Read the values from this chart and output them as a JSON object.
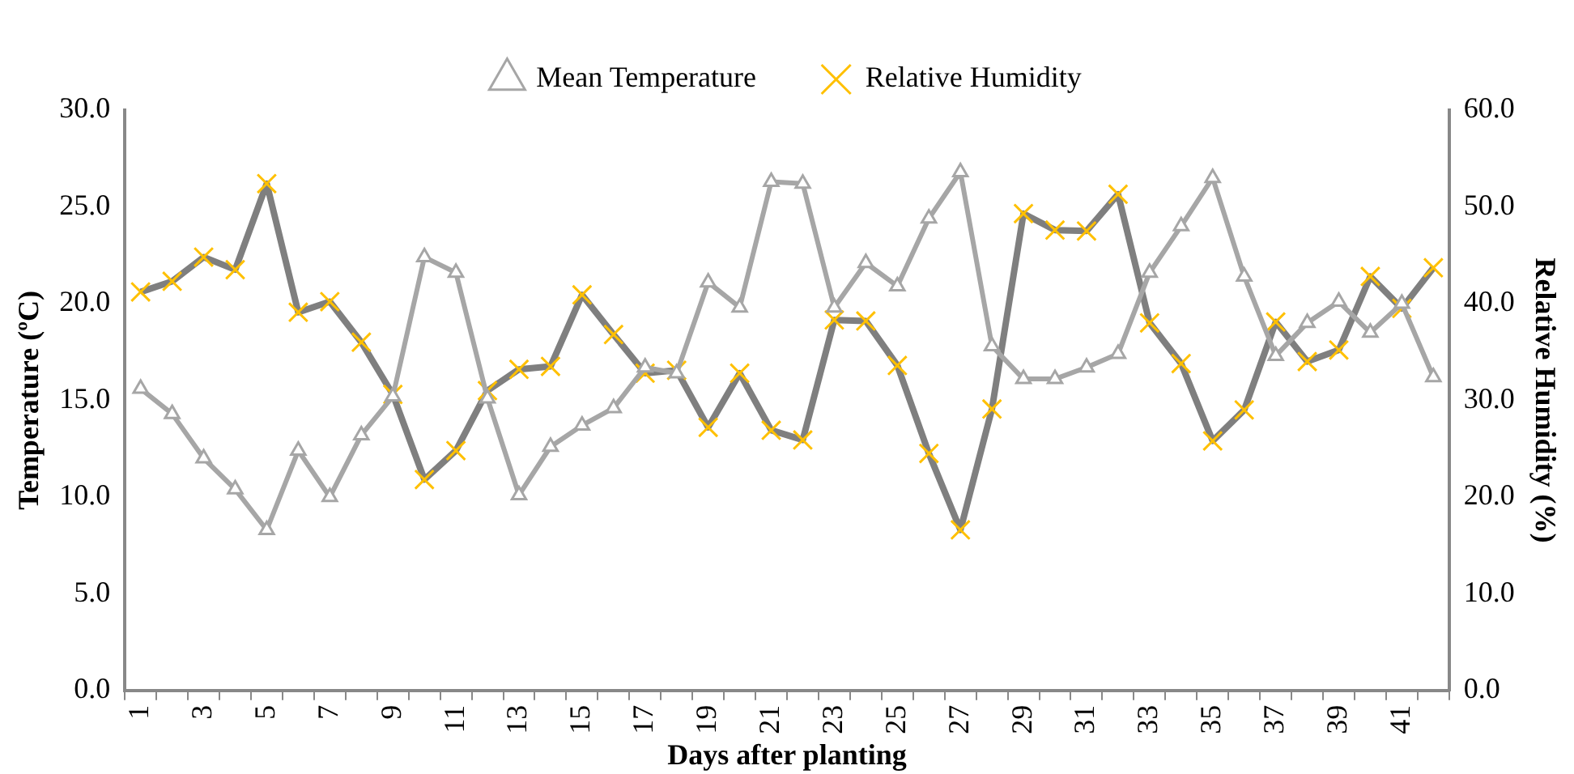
{
  "chart_data": {
    "type": "line",
    "xlabel": "Days after planting",
    "ylabel": "Temperature (ºC)",
    "y2label": "Relative Humidity (%)",
    "categories": [
      "1",
      null,
      "3",
      null,
      "5",
      null,
      "7",
      null,
      "9",
      null,
      "11",
      null,
      "13",
      null,
      "15",
      null,
      "17",
      null,
      "19",
      null,
      "21",
      null,
      "23",
      null,
      "25",
      null,
      "27",
      null,
      "29",
      null,
      "31",
      null,
      "33",
      null,
      "35",
      null,
      "37",
      null,
      "39",
      null,
      "41",
      null
    ],
    "series": [
      {
        "name": "Mean Temperature",
        "color": "#a6a6a6",
        "marker": "triangle",
        "values": [
          15.6,
          14.3,
          12.0,
          10.4,
          8.3,
          12.4,
          10.0,
          13.2,
          15.2,
          22.4,
          21.6,
          15.1,
          10.1,
          12.6,
          13.7,
          14.6,
          16.7,
          16.4,
          21.1,
          19.8,
          26.3,
          26.2,
          19.8,
          22.1,
          20.9,
          24.4,
          26.8,
          17.8,
          16.1,
          16.1,
          16.7,
          17.4,
          21.6,
          24.0,
          26.5,
          21.4,
          17.3,
          19.0,
          20.1,
          18.5,
          20.0,
          16.2
        ]
      },
      {
        "name": "Relative Humidity",
        "color": "#7f7f7f",
        "marker": "cross",
        "axis": "y2",
        "values": [
          41.2,
          42.3,
          44.8,
          43.5,
          52.4,
          39.1,
          40.2,
          36.0,
          30.6,
          21.8,
          24.8,
          31.0,
          33.2,
          33.5,
          40.9,
          36.8,
          32.8,
          33.1,
          27.2,
          32.8,
          26.9,
          25.9,
          38.3,
          38.2,
          33.6,
          24.5,
          16.6,
          29.1,
          49.3,
          47.6,
          47.5,
          51.3,
          38.0,
          33.8,
          25.8,
          29.0,
          38.1,
          34.0,
          35.2,
          42.8,
          39.5,
          43.7
        ]
      }
    ],
    "ylim": [
      0,
      30
    ],
    "yticks": [
      {
        "value": 0,
        "label": "0.0"
      },
      {
        "value": 5,
        "label": "5.0"
      },
      {
        "value": 10,
        "label": "10.0"
      },
      {
        "value": 15,
        "label": "15.0"
      },
      {
        "value": 20,
        "label": "20.0"
      },
      {
        "value": 25,
        "label": "25.0"
      },
      {
        "value": 30,
        "label": "30.0"
      }
    ],
    "y2lim": [
      0,
      60
    ],
    "y2ticks": [
      {
        "value": 0,
        "label": "0.0"
      },
      {
        "value": 10,
        "label": "10.0"
      },
      {
        "value": 20,
        "label": "20.0"
      },
      {
        "value": 30,
        "label": "30.0"
      },
      {
        "value": 40,
        "label": "40.0"
      },
      {
        "value": 50,
        "label": "50.0"
      },
      {
        "value": 60,
        "label": "60.0"
      }
    ],
    "grid": false,
    "legend": "top"
  }
}
